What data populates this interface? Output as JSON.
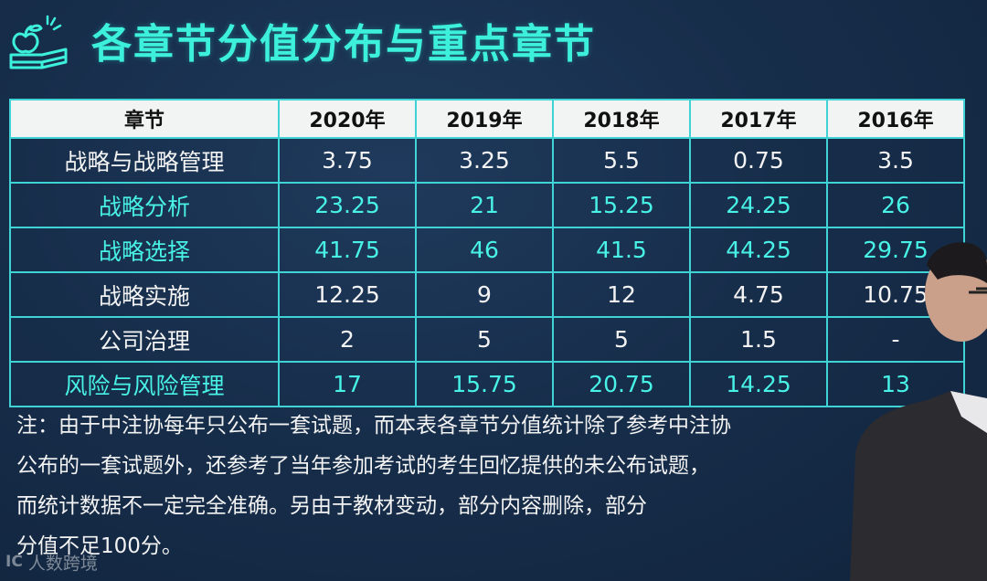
{
  "title": "各章节分值分布与重点章节",
  "icons": {
    "logo": "apple-book-logo-icon"
  },
  "table": {
    "headers": [
      "章节",
      "2020年",
      "2019年",
      "2018年",
      "2017年",
      "2016年"
    ],
    "rows": [
      {
        "cells": [
          "战略与战略管理",
          "3.75",
          "3.25",
          "5.5",
          "0.75",
          "3.5"
        ],
        "highlight": false
      },
      {
        "cells": [
          "战略分析",
          "23.25",
          "21",
          "15.25",
          "24.25",
          "26"
        ],
        "highlight": true
      },
      {
        "cells": [
          "战略选择",
          "41.75",
          "46",
          "41.5",
          "44.25",
          "29.75"
        ],
        "highlight": true
      },
      {
        "cells": [
          "战略实施",
          "12.25",
          "9",
          "12",
          "4.75",
          "10.75"
        ],
        "highlight": false
      },
      {
        "cells": [
          "公司治理",
          "2",
          "5",
          "5",
          "1.5",
          "-"
        ],
        "highlight": false
      },
      {
        "cells": [
          "风险与风险管理",
          "17",
          "15.75",
          "20.75",
          "14.25",
          "13"
        ],
        "highlight": true
      }
    ]
  },
  "note": [
    "注：由于中注协每年只公布一套试题，而本表各章节分值统计除了参考中注协",
    "公布的一套试题外，还参考了当年参加考试的考生回忆提供的未公布试题，",
    "而统计数据不一定完全准确。另由于教材变动，部分内容删除，部分",
    "分值不足100分。"
  ],
  "watermark": {
    "mark": "IC",
    "text": "人数跨境"
  },
  "colors": {
    "title": "#3cf0dc",
    "highlight_text": "#48f2e6",
    "border": "#3fd3d6",
    "header_bg": "#f2f4f3",
    "background": "#172e4b"
  }
}
